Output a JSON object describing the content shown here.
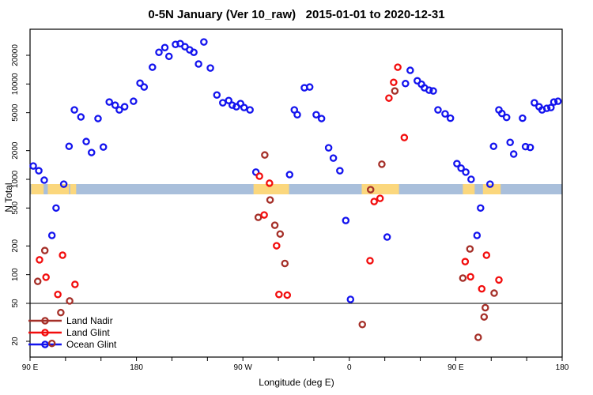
{
  "title": "0-5N January (Ver 10_raw)   2015-01-01 to 2020-12-31",
  "chart_data": {
    "type": "scatter",
    "title": "0-5N January (Ver 10_raw)  2015-01-01 to 2020-12-31",
    "xlabel": "Longitude (deg E)",
    "ylabel": "N Total",
    "x_axis_note": "longitude wraps: 90E to 180 to 90W to 0 to 90E to 180",
    "xlim": [
      90,
      540
    ],
    "ylim_log": [
      14,
      37000
    ],
    "grid": false,
    "reference_line_y": 50,
    "y_ticks": [
      20000,
      10000,
      5000,
      2000,
      1000,
      500,
      200,
      100,
      50,
      20
    ],
    "x_ticks": [
      {
        "lon": 90,
        "label": "90 E"
      },
      {
        "lon": 180,
        "label": "180"
      },
      {
        "lon": 270,
        "label": "90 W"
      },
      {
        "lon": 360,
        "label": "0"
      },
      {
        "lon": 450,
        "label": "90 E"
      },
      {
        "lon": 540,
        "label": "180"
      }
    ],
    "x_minor_ticks": [
      120,
      150,
      210,
      240,
      300,
      330,
      390,
      420,
      480,
      510
    ],
    "map_strip": {
      "ocean_color": "#a9bfdb",
      "land_color": "#fbd77d",
      "land_patches_lon": [
        [
          91,
          101.5
        ],
        [
          105,
          123
        ],
        [
          124,
          129
        ],
        [
          279,
          309
        ],
        [
          370.5,
          402
        ],
        [
          456,
          466
        ],
        [
          473,
          488
        ]
      ]
    },
    "legend_position": "bottom-left",
    "series": [
      {
        "name": "Land Nadir",
        "color": "#a52f28",
        "points": [
          [
            102.5,
            179
          ],
          [
            96.5,
            85
          ],
          [
            123.5,
            53
          ],
          [
            116,
            40
          ],
          [
            108.5,
            19
          ],
          [
            288.5,
            1800
          ],
          [
            293,
            608
          ],
          [
            283,
            399
          ],
          [
            297,
            330
          ],
          [
            301.5,
            267
          ],
          [
            305.5,
            131
          ],
          [
            398.5,
            8450
          ],
          [
            387.5,
            1440
          ],
          [
            378,
            779
          ],
          [
            371,
            30
          ],
          [
            462,
            186
          ],
          [
            456,
            92
          ],
          [
            475,
            45
          ],
          [
            474,
            36
          ],
          [
            469,
            22
          ],
          [
            482.5,
            64
          ]
        ]
      },
      {
        "name": "Land Glint",
        "color": "#f20d0d",
        "points": [
          [
            117.5,
            160
          ],
          [
            98,
            143
          ],
          [
            103.5,
            94
          ],
          [
            128,
            79
          ],
          [
            113.5,
            62
          ],
          [
            284,
            1080
          ],
          [
            292.5,
            910
          ],
          [
            288,
            423
          ],
          [
            298.5,
            201
          ],
          [
            300.5,
            62
          ],
          [
            307.5,
            61
          ],
          [
            381,
            585
          ],
          [
            386,
            631
          ],
          [
            377.5,
            140
          ],
          [
            393.5,
            7110
          ],
          [
            397.5,
            10400
          ],
          [
            401,
            15000
          ],
          [
            406.5,
            2740
          ],
          [
            458,
            137
          ],
          [
            462.5,
            95
          ],
          [
            472,
            71
          ],
          [
            476,
            160
          ],
          [
            486.5,
            88
          ]
        ]
      },
      {
        "name": "Ocean Glint",
        "color": "#1313ee",
        "points": [
          [
            92.7,
            1380
          ],
          [
            97.4,
            1230
          ],
          [
            102,
            980
          ],
          [
            118.5,
            890
          ],
          [
            112,
            500
          ],
          [
            108.5,
            258
          ],
          [
            127.5,
            5350
          ],
          [
            133,
            4510
          ],
          [
            147.5,
            4340
          ],
          [
            157,
            6470
          ],
          [
            162,
            5990
          ],
          [
            123,
            2220
          ],
          [
            137.5,
            2490
          ],
          [
            142,
            1910
          ],
          [
            152,
            2180
          ],
          [
            165.5,
            5350
          ],
          [
            170,
            5770
          ],
          [
            177.5,
            6590
          ],
          [
            183,
            10200
          ],
          [
            186.5,
            9290
          ],
          [
            193.5,
            15000
          ],
          [
            199,
            21500
          ],
          [
            204,
            24100
          ],
          [
            207.5,
            19500
          ],
          [
            213,
            26000
          ],
          [
            217,
            26500
          ],
          [
            221,
            24600
          ],
          [
            225,
            22800
          ],
          [
            228.5,
            21500
          ],
          [
            232.5,
            16200
          ],
          [
            237,
            27600
          ],
          [
            242.5,
            14700
          ],
          [
            248,
            7670
          ],
          [
            253,
            6350
          ],
          [
            258,
            6710
          ],
          [
            261,
            5990
          ],
          [
            264.5,
            5770
          ],
          [
            268,
            6230
          ],
          [
            271,
            5660
          ],
          [
            276,
            5350
          ],
          [
            313.5,
            5350
          ],
          [
            316,
            4760
          ],
          [
            281,
            1190
          ],
          [
            309.5,
            1120
          ],
          [
            322,
            9120
          ],
          [
            326.5,
            9290
          ],
          [
            332,
            4760
          ],
          [
            336.5,
            4340
          ],
          [
            342.5,
            2140
          ],
          [
            346.5,
            1670
          ],
          [
            352,
            1230
          ],
          [
            357,
            370
          ],
          [
            361,
            55
          ],
          [
            392,
            248
          ],
          [
            407.5,
            10100
          ],
          [
            411.5,
            13900
          ],
          [
            417.5,
            10800
          ],
          [
            421,
            9950
          ],
          [
            423.5,
            9120
          ],
          [
            427.5,
            8610
          ],
          [
            431,
            8450
          ],
          [
            435,
            5350
          ],
          [
            441,
            4860
          ],
          [
            445.5,
            4380
          ],
          [
            451,
            1460
          ],
          [
            454.5,
            1310
          ],
          [
            458.5,
            1190
          ],
          [
            463,
            1000
          ],
          [
            479,
            890
          ],
          [
            471,
            500
          ],
          [
            468,
            258
          ],
          [
            486.5,
            5350
          ],
          [
            489,
            4910
          ],
          [
            493,
            4460
          ],
          [
            506.5,
            4380
          ],
          [
            516.5,
            6350
          ],
          [
            520.5,
            5770
          ],
          [
            523,
            5350
          ],
          [
            527,
            5550
          ],
          [
            530.5,
            5660
          ],
          [
            533,
            6470
          ],
          [
            536.5,
            6590
          ],
          [
            482,
            2220
          ],
          [
            496,
            2440
          ],
          [
            499,
            1840
          ],
          [
            509,
            2200
          ],
          [
            513,
            2160
          ]
        ]
      }
    ]
  }
}
